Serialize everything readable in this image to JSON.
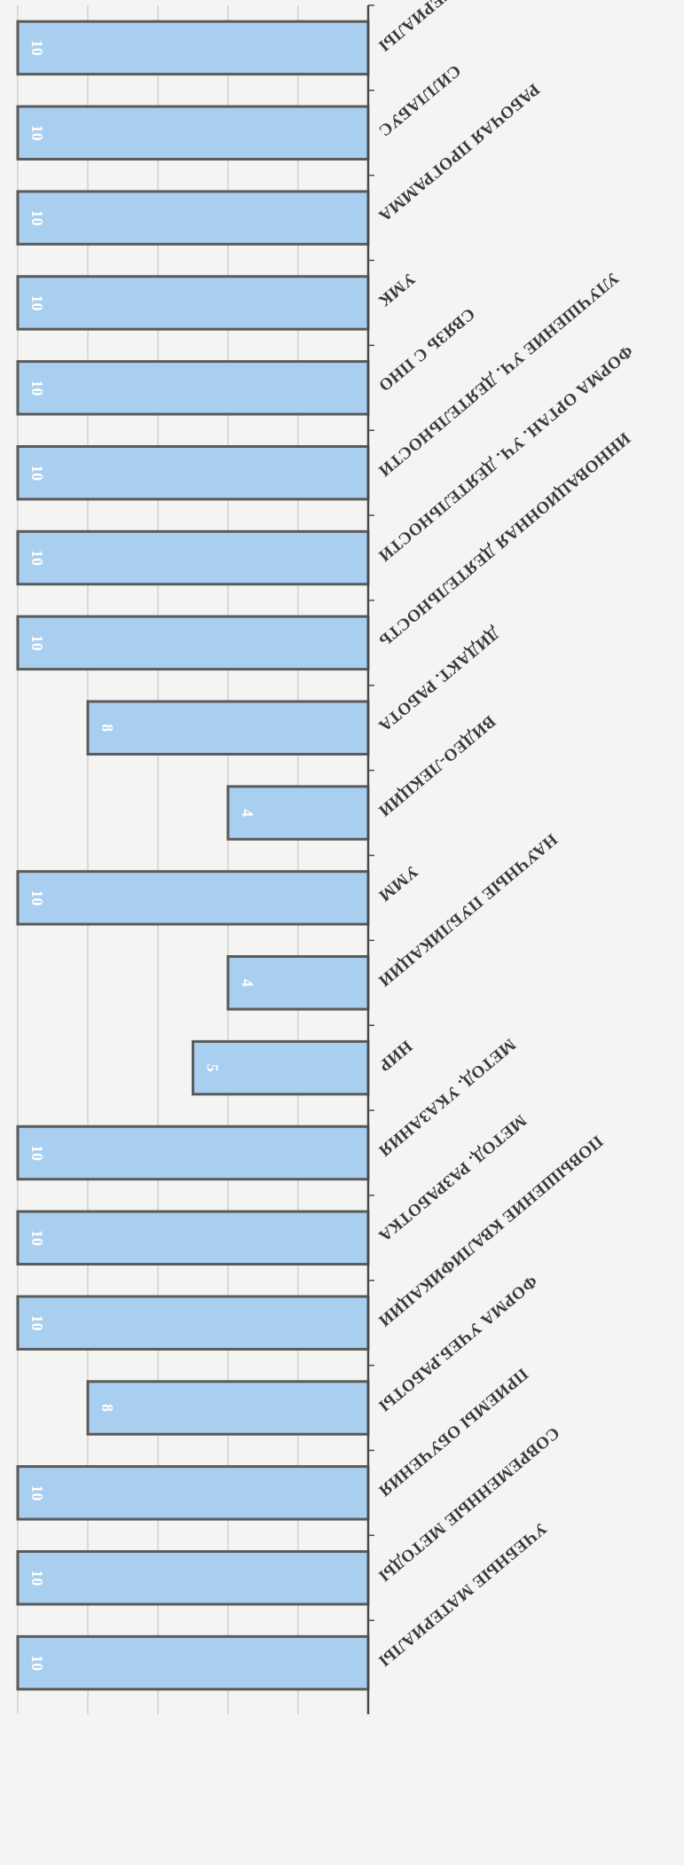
{
  "chart_data": {
    "type": "bar",
    "orientation": "horizontal",
    "categories": [
      "ЛЕКЦИОННЫЕ МАТЕРИАЛЫ",
      "СИЛЛАБУС",
      "РАБОЧАЯ ПРОГРАММА",
      "УМК",
      "СВЯЗЬ С ПНО",
      "УЛУЧШЕНИЕ УЧ. ДЕЯТЕЛЬНОСТИ",
      "ФОРМА ОРГАН. УЧ. ДЕЯТЕЛЬНОСТИ",
      "ИННОВАЦИОННАЯ ДЕЯТЕЛЬНОСТЬ",
      "ДИДАКТ. РАБОТА",
      "ВИДЕО-ЛЕКЦИИ",
      "УММ",
      "НАУЧНЫЕ ПУБЛИКАЦИИ",
      "НИР",
      "МЕТОД. УКАЗАНИЯ",
      "МЕТОД. РАЗРАБОТКА",
      "ПОВЫШЕНИЕ КВАЛИФИКАЦИИ",
      "ФОРМА УЧЕБ.РАБОТЫ",
      "ПРИЕМЫ ОБУЧЕНИЯ",
      "СОВРЕМЕННЫЕ МЕТОДЫ",
      "УЧЕБНЫЕ МАТЕРИАЛЫ"
    ],
    "values": [
      10,
      10,
      10,
      10,
      10,
      10,
      10,
      10,
      8,
      4,
      10,
      4,
      5,
      10,
      10,
      10,
      8,
      10,
      10,
      10
    ],
    "value_labels": true,
    "xlim": [
      0,
      10
    ],
    "grid": true,
    "legend": "none",
    "title": "",
    "xlabel": "",
    "ylabel": "",
    "bar_color": "#a8cff0",
    "bar_edge_color": "#5a5a5a",
    "grid_color": "#c8c8c8",
    "axis_color": "#4a4a4a"
  }
}
